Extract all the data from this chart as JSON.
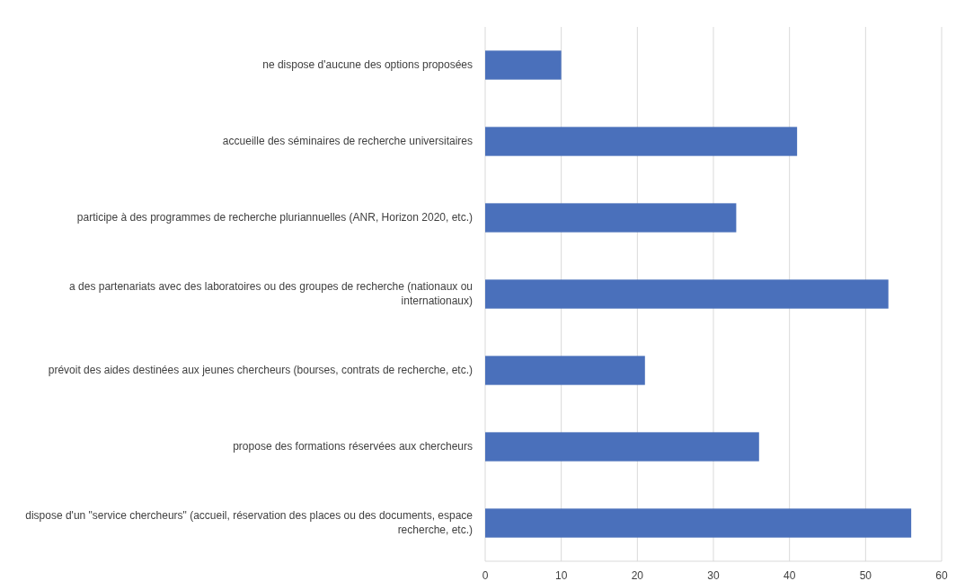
{
  "chart_data": {
    "type": "bar",
    "orientation": "horizontal",
    "categories": [
      "ne dispose d'aucune des options proposées",
      "accueille des séminaires de recherche universitaires",
      "participe à des programmes de recherche pluriannuelles (ANR, Horizon 2020, etc.)",
      "a des partenariats avec des laboratoires ou des groupes de recherche (nationaux ou internationaux)",
      "prévoit des aides destinées aux jeunes chercheurs (bourses, contrats de recherche, etc.)",
      "propose des formations réservées aux chercheurs",
      "dispose d'un \"service chercheurs\" (accueil, réservation des places ou des documents, espace recherche, etc.)"
    ],
    "values": [
      10,
      41,
      33,
      53,
      21,
      36,
      56
    ],
    "color": "#4a70bb",
    "xlim": [
      0,
      60
    ],
    "xticks": [
      0,
      10,
      20,
      30,
      40,
      50,
      60
    ],
    "grid": "x"
  }
}
